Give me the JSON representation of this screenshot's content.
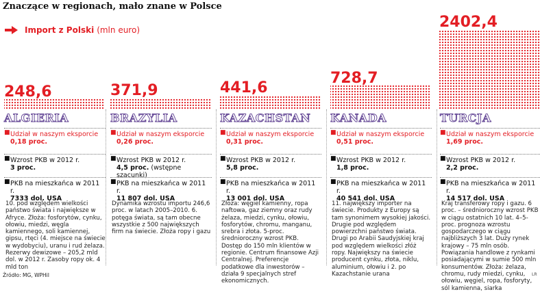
{
  "title": "Znaczące w regionach, mało znane w Polsce",
  "legend": {
    "label": "Import z Polski",
    "unit": "(mln euro)"
  },
  "colors": {
    "accent": "#e31e24",
    "country_outline": "#6b4f9a",
    "dots": "#e31e24"
  },
  "chart_data": {
    "type": "bar",
    "title": "Znaczące w regionach, mało znane w Polsce",
    "categories": [
      "ALGIERIA",
      "BRAZYLIA",
      "KAZACHSTAN",
      "KANADA",
      "TURCJA"
    ],
    "series": [
      {
        "name": "Import z Polski (mln euro)",
        "values": [
          248.6,
          371.9,
          441.6,
          728.7,
          2402.4
        ]
      }
    ],
    "value_labels": [
      "248,6",
      "371,9",
      "441,6",
      "728,7",
      "2402,4"
    ]
  },
  "columns": [
    {
      "country": "ALGIERIA",
      "share_label": "Udział w naszym eksporcie",
      "share_value": "0,18 proc.",
      "gdp_label": "Wzrost PKB w 2012 r.",
      "gdp_value": "3 proc.",
      "pc_label": "PKB na mieszkańca w 2011 r.",
      "pc_value": "7333 dol. USA",
      "desc": "10. pod względem wielkości państwo świata i największe w Afryce. Złoża: fosforytów, cynku, ołowiu, miedzi, węgla kamiennego, soli kamiennej, gipsu, rtęci (4. miejsce na świecie w wydobyciu), uranu i rud żelaza. Rezerwy dewizowe – 205,2 mld dol. w 2012 r. Zasoby ropy ok. 4 mld ton"
    },
    {
      "country": "BRAZYLIA",
      "share_label": "Udział w naszym eksporcie",
      "share_value": "0,26 proc.",
      "gdp_label": "Wzrost PKB w 2012 r.",
      "gdp_value": "4,5 proc.",
      "gdp_note": "(wstępne szacunki)",
      "pc_label": "PKB na mieszkańca w 2011 r.",
      "pc_value": "11 807 dol. USA",
      "desc": "Dynamika wzrostu importu 246,6 proc. w latach 2005–2010. 6. potęga świata, są tam obecne wszystkie z 500 największych firm na świecie. Złoża ropy i gazu"
    },
    {
      "country": "KAZACHSTAN",
      "share_label": "Udział w naszym eksporcie",
      "share_value": "0,31 proc.",
      "gdp_label": "Wzrost PKB w 2012 r.",
      "gdp_value": "5,8 proc.",
      "pc_label": "PKB na mieszkańca w 2011 r.",
      "pc_value": "13 001 dol. USA",
      "desc": "Złoża: węgiel kamienny, ropa naftowa, gaz ziemny oraz rudy żelaza, miedzi, cynku, ołowiu, fosforytów, chromu, manganu, srebra i złota. 5-proc. średnioroczny wzrost PKB. Dostęp do 150 mln klientów w regionie. Centrum finansowe Azji Centralnej. Preferencje podatkowe dla inwestorów – działa 9 specjalnych stref ekonomicznych."
    },
    {
      "country": "KANADA",
      "share_label": "Udział w naszym eksporcie",
      "share_value": "0,51 proc.",
      "gdp_label": "Wzrost PKB w 2012 r.",
      "gdp_value": "1,8 proc.",
      "pc_label": "PKB na mieszkańca w 2011 r.",
      "pc_value": "40 541 dol. USA",
      "desc": "11. największy importer na świecie. Produkty z Europy są tam synonimem wysokiej jakości. Drugie pod względem powierzchni państwo świata. Drugi po Arabii Saudyjskiej kraj pod względem wielkości złóż ropy. Największy na świecie producent cynku, złota, niklu, aluminium, ołowiu i 2. po Kazachstanie urana"
    },
    {
      "country": "TURCJA",
      "share_label": "Udział w naszym eksporcie",
      "share_value": "1,69 proc.",
      "gdp_label": "Wzrost PKB w 2012 r.",
      "gdp_value": "2,2 proc.",
      "pc_label": "PKB na mieszkańca w 2011 r.",
      "pc_value": "14 517 dol. USA",
      "desc": "Kraj transferowy ropy i gazu. 6 proc. – średnioroczny wzrost PKB w ciągu ostatnich 10 lat. 4–5-proc. prognoza wzrostu gospodarczego w ciągu najbliższych 3 lat. Duży rynek krajowy – 75 mln osób. Powiązania handlowe z rynkami posiadającymi w sumie 500 mln konsumentów. Złoża: żelaza, chromu, rudy miedzi, cynku, ołowiu, węgiel, ropa, fosforyty, sól kamienna, siarka"
    }
  ],
  "source": "Źródło: MG, WPHiI",
  "credit": "LR"
}
